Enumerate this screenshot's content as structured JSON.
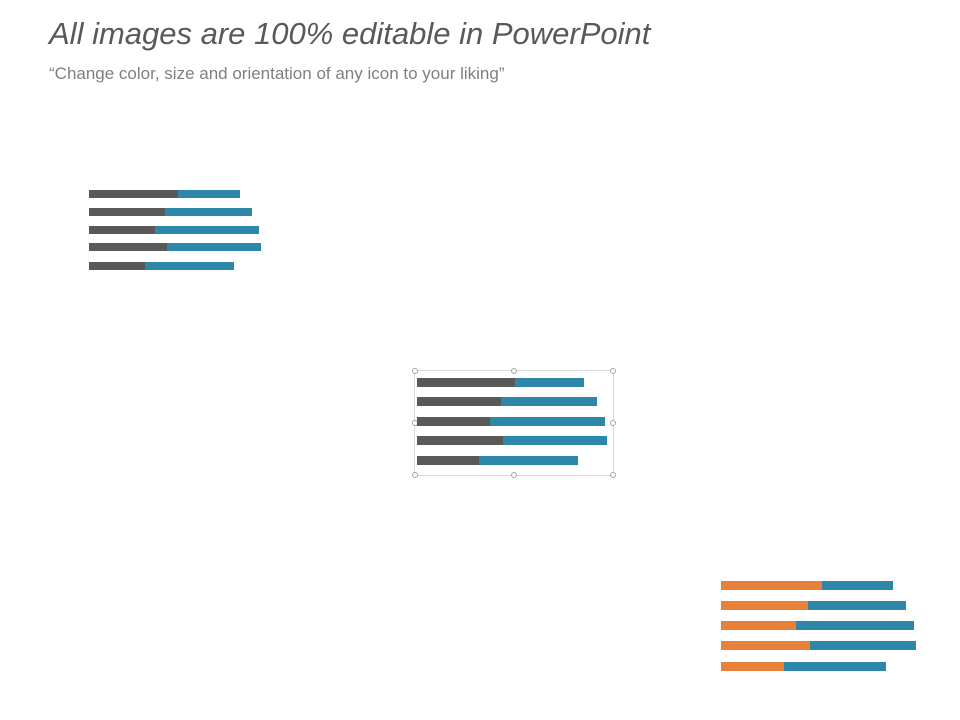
{
  "header": {
    "title": "All images are 100% editable in PowerPoint",
    "subtitle": "“Change color, size and orientation of any icon to your liking”"
  },
  "icons": [
    {
      "name": "stacked-bar-icon-gray-blue",
      "colors": [
        "#595959",
        "#2e86a8"
      ],
      "selected": false
    },
    {
      "name": "stacked-bar-icon-gray-blue-selected",
      "colors": [
        "#595959",
        "#2e86a8"
      ],
      "selected": true
    },
    {
      "name": "stacked-bar-icon-orange-blue",
      "colors": [
        "#e8803a",
        "#2e86a8"
      ],
      "selected": false
    }
  ]
}
